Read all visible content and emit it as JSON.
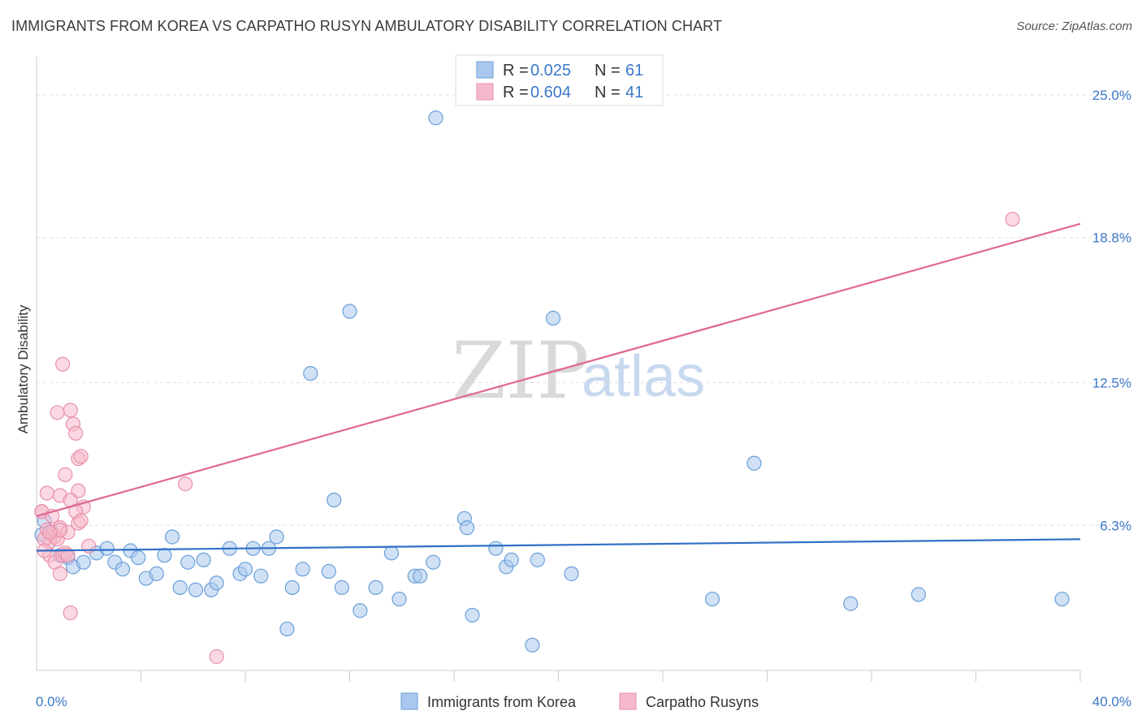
{
  "header": {
    "title": "IMMIGRANTS FROM KOREA VS CARPATHO RUSYN AMBULATORY DISABILITY CORRELATION CHART",
    "source": "Source: ZipAtlas.com"
  },
  "watermark": {
    "part1": "ZIP",
    "part2": "atlas"
  },
  "legend": {
    "rows": [
      {
        "r_label": "R =",
        "r_value": "0.025",
        "n_label": "N =",
        "n_value": "61"
      },
      {
        "r_label": "R =",
        "r_value": "0.604",
        "n_label": "N =",
        "n_value": "41"
      }
    ]
  },
  "bottom_legend": {
    "items": [
      "Immigrants from Korea",
      "Carpatho Rusyns"
    ]
  },
  "colors": {
    "blue_fill": "#aac8ee",
    "blue_stroke": "#6a9fd8",
    "blue_line": "#2f6fc6",
    "pink_fill": "#f5b9cb",
    "pink_stroke": "#e890ab",
    "pink_line": "#e06890",
    "grid": "#dddddd",
    "tick_text": "#3b78c7"
  },
  "chart_data": {
    "type": "scatter",
    "title": "IMMIGRANTS FROM KOREA VS CARPATHO RUSYN AMBULATORY DISABILITY CORRELATION CHART",
    "xlabel": "",
    "ylabel": "Ambulatory Disability",
    "xlim": [
      0,
      40
    ],
    "ylim": [
      0,
      26.3
    ],
    "x_tick_labels": [
      "0.0%",
      "40.0%"
    ],
    "y_ticks": [
      6.3,
      12.5,
      18.8,
      25.0
    ],
    "y_tick_labels": [
      "6.3%",
      "12.5%",
      "18.8%",
      "25.0%"
    ],
    "grid": "horizontal dashed",
    "series": [
      {
        "name": "Immigrants from Korea",
        "color": "blue",
        "trend": {
          "x": [
            0,
            40
          ],
          "y": [
            5.2,
            5.7
          ]
        },
        "points": [
          [
            0.3,
            6.5
          ],
          [
            0.6,
            6.0
          ],
          [
            0.9,
            5.0
          ],
          [
            1.2,
            4.9
          ],
          [
            1.4,
            4.5
          ],
          [
            1.8,
            4.7
          ],
          [
            2.3,
            5.1
          ],
          [
            2.7,
            5.3
          ],
          [
            3.0,
            4.7
          ],
          [
            3.3,
            4.4
          ],
          [
            3.6,
            5.2
          ],
          [
            3.9,
            4.9
          ],
          [
            4.2,
            4.0
          ],
          [
            4.6,
            4.2
          ],
          [
            4.9,
            5.0
          ],
          [
            5.2,
            5.8
          ],
          [
            5.5,
            3.6
          ],
          [
            5.8,
            4.7
          ],
          [
            6.1,
            3.5
          ],
          [
            6.4,
            4.8
          ],
          [
            6.7,
            3.5
          ],
          [
            6.9,
            3.8
          ],
          [
            7.4,
            5.3
          ],
          [
            7.8,
            4.2
          ],
          [
            8.0,
            4.4
          ],
          [
            8.3,
            5.3
          ],
          [
            8.6,
            4.1
          ],
          [
            8.9,
            5.3
          ],
          [
            9.2,
            5.8
          ],
          [
            9.6,
            1.8
          ],
          [
            9.8,
            3.6
          ],
          [
            10.2,
            4.4
          ],
          [
            10.5,
            12.9
          ],
          [
            11.2,
            4.3
          ],
          [
            11.4,
            7.4
          ],
          [
            11.7,
            3.6
          ],
          [
            12.0,
            15.6
          ],
          [
            12.4,
            2.6
          ],
          [
            13.0,
            3.6
          ],
          [
            13.6,
            5.1
          ],
          [
            13.9,
            3.1
          ],
          [
            14.5,
            4.1
          ],
          [
            14.7,
            4.1
          ],
          [
            15.2,
            4.7
          ],
          [
            15.3,
            24.0
          ],
          [
            16.4,
            6.6
          ],
          [
            16.5,
            6.2
          ],
          [
            16.7,
            2.4
          ],
          [
            17.6,
            5.3
          ],
          [
            18.0,
            4.5
          ],
          [
            18.2,
            4.8
          ],
          [
            19.0,
            1.1
          ],
          [
            19.2,
            4.8
          ],
          [
            19.8,
            15.3
          ],
          [
            20.5,
            4.2
          ],
          [
            25.9,
            3.1
          ],
          [
            27.5,
            9.0
          ],
          [
            31.2,
            2.9
          ],
          [
            33.8,
            3.3
          ],
          [
            39.3,
            3.1
          ],
          [
            0.2,
            5.9
          ]
        ]
      },
      {
        "name": "Carpatho Rusyns",
        "color": "pink",
        "trend": {
          "x": [
            0,
            40
          ],
          "y": [
            6.7,
            19.4
          ]
        },
        "points": [
          [
            0.2,
            6.9
          ],
          [
            0.4,
            6.1
          ],
          [
            0.5,
            5.6
          ],
          [
            0.6,
            5.9
          ],
          [
            0.7,
            5.8
          ],
          [
            0.8,
            5.7
          ],
          [
            0.9,
            6.2
          ],
          [
            0.3,
            5.7
          ],
          [
            0.5,
            5.0
          ],
          [
            0.7,
            4.7
          ],
          [
            0.9,
            4.2
          ],
          [
            1.0,
            5.0
          ],
          [
            1.1,
            5.1
          ],
          [
            1.2,
            6.0
          ],
          [
            1.3,
            2.5
          ],
          [
            0.8,
            11.2
          ],
          [
            1.0,
            13.3
          ],
          [
            1.3,
            11.3
          ],
          [
            1.4,
            10.7
          ],
          [
            1.5,
            10.3
          ],
          [
            1.6,
            9.2
          ],
          [
            1.7,
            9.3
          ],
          [
            1.1,
            8.5
          ],
          [
            0.4,
            7.7
          ],
          [
            0.9,
            7.6
          ],
          [
            1.6,
            7.8
          ],
          [
            1.3,
            7.4
          ],
          [
            1.8,
            7.1
          ],
          [
            1.5,
            6.9
          ],
          [
            1.6,
            6.4
          ],
          [
            2.0,
            5.4
          ],
          [
            0.2,
            6.9
          ],
          [
            0.6,
            6.7
          ],
          [
            0.9,
            6.1
          ],
          [
            1.2,
            5.0
          ],
          [
            1.7,
            6.5
          ],
          [
            5.7,
            8.1
          ],
          [
            6.9,
            0.6
          ],
          [
            37.4,
            19.6
          ],
          [
            0.3,
            5.2
          ],
          [
            0.5,
            6.0
          ]
        ]
      }
    ]
  }
}
